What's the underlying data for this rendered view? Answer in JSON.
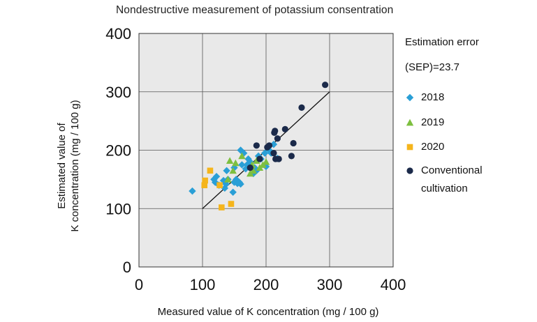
{
  "chart_data": {
    "type": "scatter",
    "title": "Nondestructive measurement of potassium consentration",
    "xlabel": "Measured value of K concentration (mg / 100 g)",
    "ylabel": [
      "Estimated value of",
      "K concentration (mg / 100 g)"
    ],
    "xlim": [
      0,
      400
    ],
    "ylim": [
      0,
      400
    ],
    "xticks": [
      "0",
      "100",
      "200",
      "300",
      "400"
    ],
    "yticks": [
      "0",
      "100",
      "200",
      "300",
      "400"
    ],
    "grid": true,
    "legend_position": "right",
    "annotation": [
      "Estimation error",
      "(SEP)=23.7"
    ],
    "reference_line": {
      "x": [
        100,
        300
      ],
      "y": [
        100,
        300
      ]
    },
    "series": [
      {
        "name": "2018",
        "marker": "diamond",
        "color": "#2a9fd6",
        "points": [
          [
            84,
            130
          ],
          [
            118,
            150
          ],
          [
            120,
            145
          ],
          [
            122,
            155
          ],
          [
            126,
            140
          ],
          [
            133,
            148
          ],
          [
            135,
            135
          ],
          [
            137,
            142
          ],
          [
            138,
            165
          ],
          [
            140,
            150
          ],
          [
            148,
            128
          ],
          [
            150,
            145
          ],
          [
            150,
            170
          ],
          [
            153,
            150
          ],
          [
            155,
            143
          ],
          [
            158,
            145
          ],
          [
            160,
            200
          ],
          [
            160,
            142
          ],
          [
            162,
            175
          ],
          [
            165,
            195
          ],
          [
            168,
            168
          ],
          [
            170,
            175
          ],
          [
            172,
            185
          ],
          [
            175,
            180
          ],
          [
            180,
            160
          ],
          [
            182,
            170
          ],
          [
            185,
            165
          ],
          [
            188,
            190
          ],
          [
            192,
            185
          ],
          [
            198,
            195
          ],
          [
            200,
            172
          ],
          [
            205,
            200
          ],
          [
            208,
            195
          ],
          [
            212,
            210
          ],
          [
            218,
            186
          ]
        ]
      },
      {
        "name": "2019",
        "marker": "triangle",
        "color": "#7dbf3f",
        "points": [
          [
            140,
            150
          ],
          [
            143,
            182
          ],
          [
            148,
            165
          ],
          [
            152,
            178
          ],
          [
            162,
            190
          ],
          [
            175,
            160
          ],
          [
            178,
            175
          ],
          [
            180,
            165
          ],
          [
            185,
            182
          ],
          [
            190,
            170
          ],
          [
            195,
            175
          ],
          [
            200,
            180
          ]
        ]
      },
      {
        "name": "2020",
        "marker": "square",
        "color": "#f5b51c",
        "points": [
          [
            103,
            140
          ],
          [
            104,
            148
          ],
          [
            112,
            165
          ],
          [
            127,
            140
          ],
          [
            130,
            102
          ],
          [
            145,
            108
          ]
        ]
      },
      {
        "name": "Conventional\ncultivation",
        "marker": "circle",
        "color": "#1b2a4a",
        "points": [
          [
            175,
            170
          ],
          [
            185,
            208
          ],
          [
            190,
            185
          ],
          [
            202,
            205
          ],
          [
            205,
            208
          ],
          [
            212,
            195
          ],
          [
            213,
            230
          ],
          [
            214,
            233
          ],
          [
            215,
            185
          ],
          [
            218,
            220
          ],
          [
            220,
            185
          ],
          [
            230,
            236
          ],
          [
            240,
            190
          ],
          [
            243,
            212
          ],
          [
            256,
            273
          ],
          [
            293,
            312
          ]
        ]
      }
    ]
  }
}
